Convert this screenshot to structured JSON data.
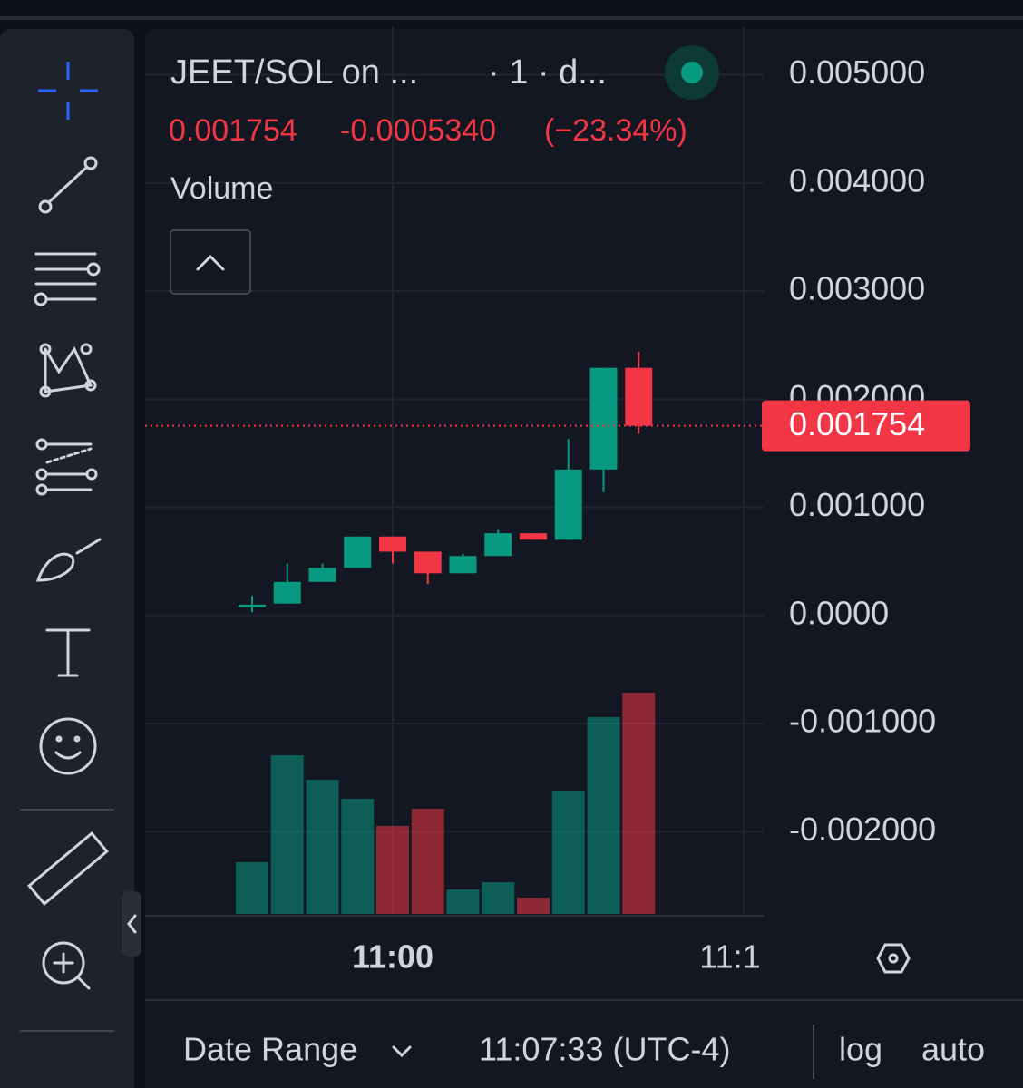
{
  "chart_data": {
    "type": "candlestick",
    "title": "JEET/SOL on ...",
    "interval": "· 1 · d...",
    "last_price": 0.001754,
    "change": "-0.0005340",
    "change_pct": "(−23.34%)",
    "indicator": "Volume",
    "categories": [
      null,
      null,
      null,
      null,
      "11:00",
      null,
      null,
      null,
      null,
      null,
      null,
      null
    ],
    "open": [
      7.5e-05,
      0.00011,
      0.00031,
      0.00044,
      0.00073,
      0.00059,
      0.00039,
      0.00055,
      0.00076,
      0.0007,
      0.00135,
      0.00229
    ],
    "high": [
      0.00018,
      0.00048,
      0.00048,
      0.00073,
      0.00073,
      0.00059,
      0.00057,
      0.00079,
      0.00076,
      0.00163,
      0.00229,
      0.00244
    ],
    "low": [
      3e-05,
      0.00011,
      0.00031,
      0.00044,
      0.00048,
      0.00029,
      0.00039,
      0.00055,
      0.0007,
      0.0007,
      0.00114,
      0.00168
    ],
    "close": [
      0.0001,
      0.00031,
      0.00044,
      0.00073,
      0.00059,
      0.00039,
      0.00055,
      0.00076,
      0.0007,
      0.00135,
      0.00229,
      0.001754
    ],
    "volume": [
      57,
      175,
      148,
      127,
      97,
      116,
      27,
      35,
      18,
      136,
      217,
      244
    ],
    "up_color": "#089981",
    "down_color": "#f23645",
    "ylim": [
      -0.00276,
      0.00544
    ],
    "yticks": [
      {
        "value": 0.005,
        "label": "0.005000"
      },
      {
        "value": 0.004,
        "label": "0.004000"
      },
      {
        "value": 0.003,
        "label": "0.003000"
      },
      {
        "value": 0.002,
        "label": "0.002000"
      },
      {
        "value": 0.001,
        "label": "0.001000"
      },
      {
        "value": 0,
        "label": "0.0000"
      },
      {
        "value": -0.001,
        "label": "-0.001000"
      },
      {
        "value": -0.002,
        "label": "-0.002000"
      }
    ],
    "x_label_right": "11:1",
    "grid": true
  },
  "footer": {
    "date_range": "Date Range",
    "time": "11:07:33 (UTC-4)",
    "log": "log",
    "auto": "auto"
  }
}
